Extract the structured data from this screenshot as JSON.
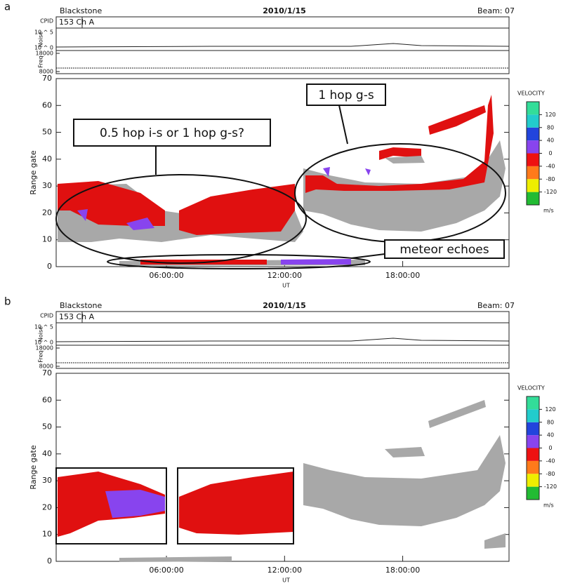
{
  "chart_data": [
    {
      "type": "range-time",
      "panel_label": "a",
      "station": "Blackstone",
      "date": "2010/1/15",
      "beam": "Beam: 07",
      "cpid_label": "CPID",
      "cpid": "153 Ch A",
      "noise_label": "Noise",
      "noise_ticks": [
        "10 ^ 5",
        "10 ^ 0"
      ],
      "freq_label": "Freq",
      "freq_ylim": [
        8000,
        18000
      ],
      "freq_ticks": [
        18000,
        8000
      ],
      "y_label": "Range gate",
      "x_label": "UT",
      "ylim": [
        0,
        70
      ],
      "yticks": [
        0,
        10,
        20,
        30,
        40,
        50,
        60,
        70
      ],
      "xlim": [
        0.4,
        23.4
      ],
      "xticks": [
        {
          "value": 6,
          "label": "06:00:00"
        },
        {
          "value": 12,
          "label": "12:00:00"
        },
        {
          "value": 18,
          "label": "18:00:00"
        }
      ],
      "colorbar": {
        "title": "VELOCITY",
        "unit": "m/s",
        "clim": [
          -160,
          160
        ],
        "ticks": [
          120,
          80,
          40,
          0,
          -40,
          -80,
          -120
        ],
        "colors": [
          "#22bb33",
          "#eeee00",
          "#ff7a1a",
          "#ee1111",
          "#8844ee",
          "#2244dd",
          "#22cccc",
          "#33dd99"
        ]
      },
      "annotations": [
        "1 hop g-s",
        "0.5 hop i-s or 1 hop g-s?",
        "meteor echoes"
      ]
    },
    {
      "type": "range-time",
      "panel_label": "b",
      "station": "Blackstone",
      "date": "2010/1/15",
      "beam": "Beam: 07",
      "cpid_label": "CPID",
      "cpid": "153 Ch A",
      "noise_label": "Noise",
      "noise_ticks": [
        "10 ^ 5",
        "10 ^ 0"
      ],
      "freq_label": "Freq",
      "freq_ylim": [
        8000,
        18000
      ],
      "freq_ticks": [
        18000,
        8000
      ],
      "y_label": "Range gate",
      "x_label": "UT",
      "ylim": [
        0,
        70
      ],
      "yticks": [
        0,
        10,
        20,
        30,
        40,
        50,
        60,
        70
      ],
      "xlim": [
        0.4,
        23.4
      ],
      "xticks": [
        {
          "value": 6,
          "label": "06:00:00"
        },
        {
          "value": 12,
          "label": "12:00:00"
        },
        {
          "value": 18,
          "label": "18:00:00"
        }
      ],
      "colorbar": {
        "title": "VELOCITY",
        "unit": "m/s",
        "clim": [
          -160,
          160
        ],
        "ticks": [
          120,
          80,
          40,
          0,
          -40,
          -80,
          -120
        ],
        "colors": [
          "#22bb33",
          "#eeee00",
          "#ff7a1a",
          "#ee1111",
          "#8844ee",
          "#2244dd",
          "#22cccc",
          "#33dd99"
        ]
      }
    }
  ]
}
